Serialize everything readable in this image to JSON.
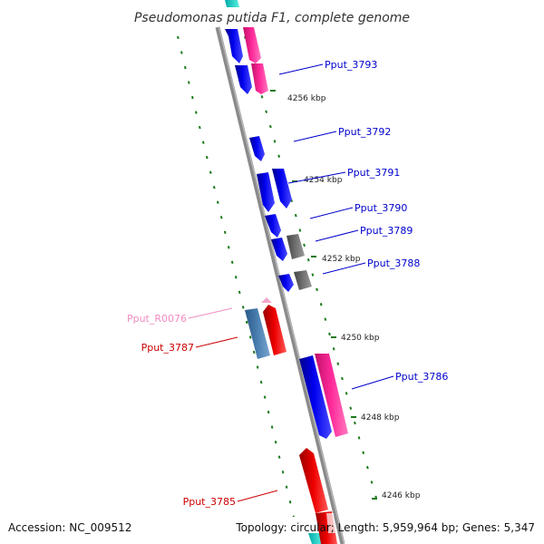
{
  "title": "Pseudomonas putida F1, complete genome",
  "footer": {
    "accession": "Accession: NC_009512",
    "topology": "Topology: circular; Length: 5,959,964 bp; Genes: 5,347"
  },
  "colors": {
    "backbone": "#8a8a8a",
    "ticks": "#1a7a1a",
    "label_blue": "#0000cc",
    "label_red": "#cc0000",
    "label_pink": "#f08cc0"
  },
  "ticks": [
    {
      "label": "4256 kbp"
    },
    {
      "label": "4254 kbp"
    },
    {
      "label": "4252 kbp"
    },
    {
      "label": "4250 kbp"
    },
    {
      "label": "4248 kbp"
    },
    {
      "label": "4246 kbp"
    }
  ],
  "gene_labels": [
    {
      "label": "Pput_3793",
      "color": "#0000cc"
    },
    {
      "label": "Pput_3792",
      "color": "#0000cc"
    },
    {
      "label": "Pput_3791",
      "color": "#0000cc"
    },
    {
      "label": "Pput_3790",
      "color": "#0000cc"
    },
    {
      "label": "Pput_3789",
      "color": "#0000cc"
    },
    {
      "label": "Pput_3788",
      "color": "#0000cc"
    },
    {
      "label": "Pput_R0076",
      "color": "#f08cc0"
    },
    {
      "label": "Pput_3787",
      "color": "#cc0000"
    },
    {
      "label": "Pput_3786",
      "color": "#0000cc"
    },
    {
      "label": "Pput_3785",
      "color": "#cc0000"
    }
  ],
  "features": [
    {
      "name": "Pput_3793",
      "color": "#0000ee"
    },
    {
      "name": "Pput_3793-pair",
      "color": "#ff2a9a"
    },
    {
      "name": "Pput_3792",
      "color": "#0000ee"
    },
    {
      "name": "Pput_3791",
      "color": "#0000ee"
    },
    {
      "name": "Pput_3790",
      "color": "#0000ee"
    },
    {
      "name": "Pput_3789",
      "color": "#0000ee"
    },
    {
      "name": "Pput_3789-pair",
      "color": "#707070"
    },
    {
      "name": "Pput_3788",
      "color": "#0000ee"
    },
    {
      "name": "Pput_3788-pair",
      "color": "#707070"
    },
    {
      "name": "Pput_R0076",
      "color": "#f08cc0"
    },
    {
      "name": "Pput_3787",
      "color": "#ee0000"
    },
    {
      "name": "Pput_3787-pair",
      "color": "#4a7fb0"
    },
    {
      "name": "Pput_3786",
      "color": "#0000ee"
    },
    {
      "name": "Pput_3786-pair",
      "color": "#ff2a9a"
    },
    {
      "name": "Pput_3785",
      "color": "#ee0000"
    }
  ]
}
